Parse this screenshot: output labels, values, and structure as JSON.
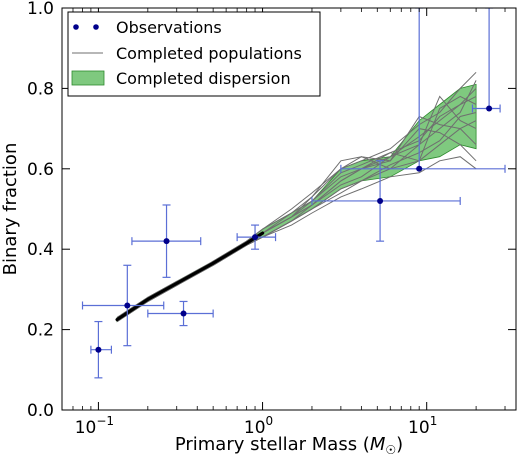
{
  "chart_data": {
    "type": "scatter",
    "xlabel": "Primary stellar Mass (",
    "xlabel_math": "M",
    "xlabel_sub": "☉",
    "xlabel_close": ")",
    "ylabel": "Binary fraction",
    "xscale": "log",
    "xlim": [
      0.06,
      35
    ],
    "ylim": [
      0.0,
      1.0
    ],
    "x_ticks": [
      {
        "value": 0.1,
        "base": "10",
        "exp": "−1"
      },
      {
        "value": 1,
        "base": "10",
        "exp": "0"
      },
      {
        "value": 10,
        "base": "10",
        "exp": "1"
      }
    ],
    "y_ticks": [
      {
        "value": 0.0,
        "label": "0.0"
      },
      {
        "value": 0.2,
        "label": "0.2"
      },
      {
        "value": 0.4,
        "label": "0.4"
      },
      {
        "value": 0.6,
        "label": "0.6"
      },
      {
        "value": 0.8,
        "label": "0.8"
      },
      {
        "value": 1.0,
        "label": "1.0"
      }
    ],
    "legend": {
      "position": "top-left",
      "entries": [
        {
          "label": "Observations",
          "kind": "points"
        },
        {
          "label": "Completed populations",
          "kind": "line"
        },
        {
          "label": "Completed dispersion",
          "kind": "band"
        }
      ]
    },
    "colors": {
      "observations": "#00008b",
      "errorbar": "#5b6fd6",
      "populations": "#6f6f6f",
      "dispersion_fill": "#7fc97f",
      "dispersion_edge": "#2e8b2e",
      "mean_line": "#000000"
    },
    "series": [
      {
        "name": "Observations",
        "points": [
          {
            "x": 0.1,
            "y": 0.15,
            "xerr": [
              0.09,
              0.12
            ],
            "yerr": [
              0.08,
              0.22
            ]
          },
          {
            "x": 0.15,
            "y": 0.26,
            "xerr": [
              0.08,
              0.25
            ],
            "yerr": [
              0.16,
              0.36
            ]
          },
          {
            "x": 0.26,
            "y": 0.42,
            "xerr": [
              0.16,
              0.42
            ],
            "yerr": [
              0.33,
              0.51
            ]
          },
          {
            "x": 0.33,
            "y": 0.24,
            "xerr": [
              0.2,
              0.5
            ],
            "yerr": [
              0.21,
              0.27
            ]
          },
          {
            "x": 0.9,
            "y": 0.43,
            "xerr": [
              0.7,
              1.2
            ],
            "yerr": [
              0.4,
              0.46
            ]
          },
          {
            "x": 5.2,
            "y": 0.52,
            "xerr": [
              2.0,
              16.0
            ],
            "yerr": [
              0.42,
              0.62
            ]
          },
          {
            "x": 9.0,
            "y": 0.6,
            "xerr": [
              3.0,
              30.0
            ],
            "yerr": [
              0.6,
              1.0
            ]
          },
          {
            "x": 24.0,
            "y": 0.75,
            "xerr": [
              19.0,
              28.0
            ],
            "yerr": [
              0.75,
              1.0
            ]
          }
        ]
      },
      {
        "name": "Completed populations",
        "x": [
          0.13,
          0.2,
          0.3,
          0.5,
          0.8,
          1.0,
          1.5,
          2.0,
          3.0,
          4.0,
          6.0,
          9.0,
          12.0,
          16.0,
          20.0
        ],
        "lines": [
          [
            0.22,
            0.27,
            0.31,
            0.36,
            0.41,
            0.43,
            0.47,
            0.5,
            0.55,
            0.57,
            0.6,
            0.62,
            0.66,
            0.7,
            0.72
          ],
          [
            0.23,
            0.28,
            0.32,
            0.37,
            0.42,
            0.44,
            0.48,
            0.51,
            0.57,
            0.6,
            0.63,
            0.68,
            0.72,
            0.76,
            0.78
          ],
          [
            0.22,
            0.27,
            0.31,
            0.36,
            0.41,
            0.44,
            0.49,
            0.53,
            0.6,
            0.62,
            0.65,
            0.71,
            0.74,
            0.8,
            0.84
          ],
          [
            0.23,
            0.28,
            0.31,
            0.37,
            0.41,
            0.43,
            0.46,
            0.49,
            0.53,
            0.55,
            0.58,
            0.59,
            0.62,
            0.63,
            0.6
          ],
          [
            0.22,
            0.28,
            0.32,
            0.36,
            0.42,
            0.45,
            0.5,
            0.54,
            0.6,
            0.63,
            0.6,
            0.66,
            0.78,
            0.72,
            0.7
          ],
          [
            0.23,
            0.27,
            0.31,
            0.37,
            0.41,
            0.43,
            0.47,
            0.51,
            0.56,
            0.58,
            0.63,
            0.66,
            0.7,
            0.74,
            0.82
          ],
          [
            0.22,
            0.28,
            0.32,
            0.36,
            0.41,
            0.44,
            0.48,
            0.52,
            0.58,
            0.6,
            0.62,
            0.7,
            0.69,
            0.66,
            0.62
          ],
          [
            0.23,
            0.27,
            0.31,
            0.37,
            0.42,
            0.45,
            0.49,
            0.52,
            0.59,
            0.61,
            0.64,
            0.62,
            0.75,
            0.78,
            0.76
          ],
          [
            0.22,
            0.28,
            0.32,
            0.36,
            0.41,
            0.43,
            0.47,
            0.5,
            0.54,
            0.57,
            0.61,
            0.64,
            0.67,
            0.73,
            0.74
          ],
          [
            0.23,
            0.28,
            0.31,
            0.37,
            0.42,
            0.44,
            0.48,
            0.53,
            0.62,
            0.63,
            0.62,
            0.73,
            0.71,
            0.7,
            0.66
          ],
          [
            0.22,
            0.27,
            0.32,
            0.36,
            0.41,
            0.44,
            0.48,
            0.51,
            0.57,
            0.6,
            0.64,
            0.67,
            0.73,
            0.76,
            0.8
          ]
        ]
      },
      {
        "name": "Completed dispersion",
        "x": [
          0.13,
          0.2,
          0.3,
          0.5,
          0.8,
          1.0,
          1.5,
          2.0,
          3.0,
          4.0,
          6.0,
          9.0,
          12.0,
          16.0,
          20.0
        ],
        "lower": [
          0.22,
          0.27,
          0.31,
          0.36,
          0.41,
          0.43,
          0.47,
          0.5,
          0.55,
          0.57,
          0.58,
          0.62,
          0.63,
          0.66,
          0.65
        ],
        "upper": [
          0.23,
          0.28,
          0.32,
          0.37,
          0.42,
          0.45,
          0.49,
          0.52,
          0.6,
          0.62,
          0.63,
          0.72,
          0.76,
          0.8,
          0.81
        ]
      },
      {
        "name": "Mean",
        "x": [
          0.13,
          0.2,
          0.3,
          0.5,
          0.8,
          1.0
        ],
        "y": [
          0.225,
          0.275,
          0.315,
          0.365,
          0.415,
          0.44
        ]
      }
    ]
  }
}
